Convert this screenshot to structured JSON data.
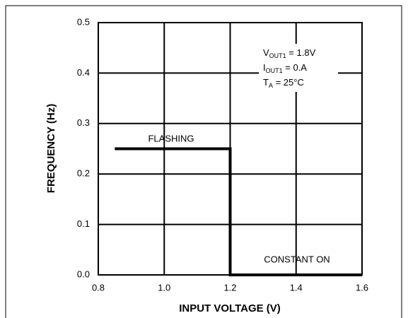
{
  "chart_data": {
    "type": "line",
    "xlabel": "INPUT VOLTAGE (V)",
    "ylabel": "FREQUENCY (Hz)",
    "x": [
      0.85,
      1.2,
      1.2,
      1.6
    ],
    "series": [
      {
        "color": "#000000",
        "values": [
          0.25,
          0.25,
          0,
          0
        ]
      }
    ],
    "xlim": [
      0.8,
      1.6
    ],
    "xticks": [
      0.8,
      {
        "value": 1,
        "label": "1.0"
      },
      1.2,
      1.4,
      1.6
    ],
    "ylim": [
      0,
      0.5
    ],
    "yticks": [
      {
        "value": 0,
        "label": "0.0"
      },
      0.1,
      0.2,
      0.3,
      0.4,
      0.5
    ],
    "grid": true,
    "annotations": [
      "FLASHING",
      "CONSTANT ON"
    ],
    "conditions": [
      {
        "main": "V",
        "sub": "OUT1",
        "rest": " = 1.8V"
      },
      {
        "main": "I",
        "sub": "OUT1",
        "rest": " = 0.A"
      },
      {
        "main": "T",
        "sub": "A",
        "rest": " = 25°C"
      }
    ]
  }
}
